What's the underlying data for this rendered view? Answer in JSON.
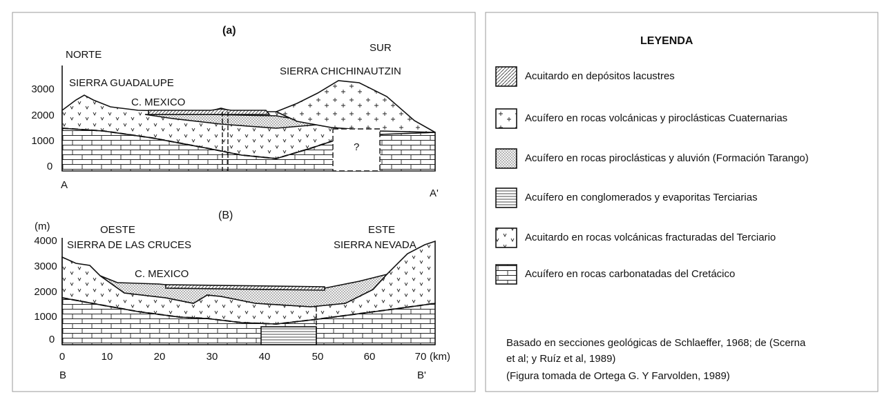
{
  "section_a": {
    "label": "(a)",
    "north": "NORTE",
    "south": "SUR",
    "range_left": "SIERRA GUADALUPE",
    "range_right": "SIERRA CHICHINAUTZIN",
    "city": "C. MEXICO",
    "unknown": "?",
    "y_labels": [
      "3000",
      "2000",
      "1000",
      "0"
    ],
    "start": "A",
    "end": "A'"
  },
  "section_b": {
    "label": "(B)",
    "unit": "(m)",
    "west": "OESTE",
    "east": "ESTE",
    "range_left": "SIERRA DE LAS CRUCES",
    "range_right": "SIERRA NEVADA",
    "city": "C. MEXICO",
    "y_labels": [
      "4000",
      "3000",
      "2000",
      "1000",
      "0"
    ],
    "x_labels": [
      "0",
      "10",
      "20",
      "30",
      "40",
      "50",
      "60",
      "70"
    ],
    "x_unit": "(km)",
    "start": "B",
    "end": "B'"
  },
  "legend": {
    "title": "LEYENDA",
    "items": [
      "Acuitardo en depósitos lacustres",
      "Acuífero en rocas volcánicas y piroclásticas Cuaternarias",
      "Acuífero en rocas piroclásticas y aluvión (Formación Tarango)",
      "Acuífero en conglomerados y evaporitas Terciarias",
      "Acuitardo en rocas volcánicas fracturadas del Terciario",
      "Acuífero en rocas carbonatadas del Cretácico"
    ],
    "source": [
      "Basado en secciones geológicas de Schlaeffer, 1968; de (Scerna",
      "et al; y Ruíz et al, 1989)",
      "(Figura tomada de Ortega G. Y Farvolden, 1989)"
    ]
  }
}
